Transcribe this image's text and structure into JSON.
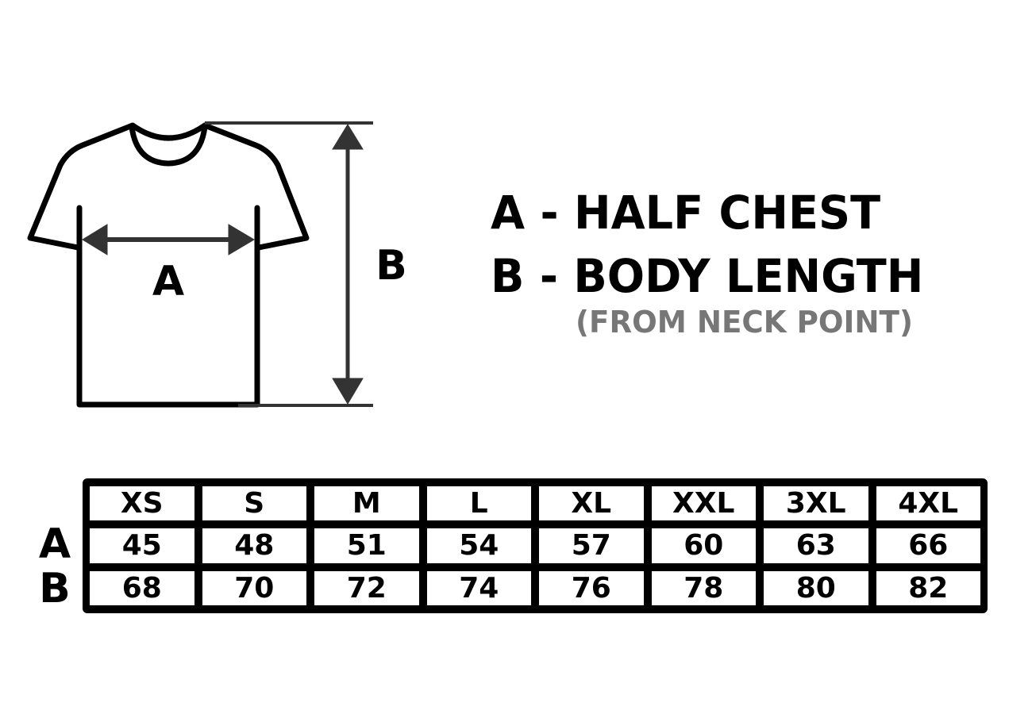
{
  "diagram": {
    "label_a": "A",
    "label_b": "B",
    "colors": {
      "outline": "#000000",
      "arrows": "#333333",
      "note": "#777777"
    }
  },
  "legend": {
    "a": "A - HALF CHEST",
    "b": "B - BODY LENGTH",
    "note": "(FROM NECK POINT)"
  },
  "table": {
    "row_labels": [
      "A",
      "B"
    ],
    "sizes": [
      "XS",
      "S",
      "M",
      "L",
      "XL",
      "XXL",
      "3XL",
      "4XL"
    ],
    "a_values": [
      "45",
      "48",
      "51",
      "54",
      "57",
      "60",
      "63",
      "66"
    ],
    "b_values": [
      "68",
      "70",
      "72",
      "74",
      "76",
      "78",
      "80",
      "82"
    ]
  }
}
